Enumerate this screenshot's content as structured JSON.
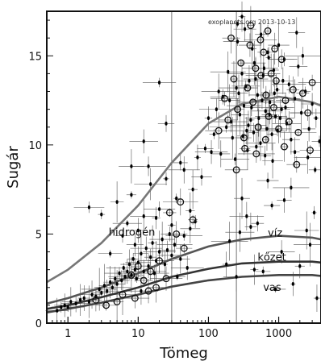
{
  "chart_data": {
    "type": "scatter",
    "title": "",
    "xlabel": "Tömeg",
    "ylabel": "Sugár",
    "xscale": "log",
    "xlim": [
      0.5,
      4000
    ],
    "ylim": [
      0,
      17.5
    ],
    "x_ticks": [
      {
        "value": 1,
        "label": "1"
      },
      {
        "value": 10,
        "label": "10"
      },
      {
        "value": 100,
        "label": "100"
      },
      {
        "value": 1000,
        "label": "1000"
      }
    ],
    "y_ticks": [
      {
        "value": 0,
        "label": "0"
      },
      {
        "value": 5,
        "label": "5"
      },
      {
        "value": 10,
        "label": "10"
      },
      {
        "value": 15,
        "label": "15"
      }
    ],
    "grid": false,
    "watermark": "exoplanets.org 2013-10-13",
    "curves": [
      {
        "name": "hidrogén",
        "color": "#777777",
        "points": [
          [
            0.5,
            2.3
          ],
          [
            1,
            3.0
          ],
          [
            3,
            4.5
          ],
          [
            10,
            6.6
          ],
          [
            30,
            9.0
          ],
          [
            100,
            11.2
          ],
          [
            300,
            12.3
          ],
          [
            1000,
            12.7
          ],
          [
            3000,
            12.4
          ],
          [
            4000,
            12.2
          ]
        ]
      },
      {
        "name": "víz",
        "color": "#555555",
        "points": [
          [
            0.5,
            1.1
          ],
          [
            1,
            1.4
          ],
          [
            3,
            2.0
          ],
          [
            10,
            2.8
          ],
          [
            30,
            3.6
          ],
          [
            100,
            4.3
          ],
          [
            300,
            4.7
          ],
          [
            1000,
            4.9
          ],
          [
            3000,
            4.8
          ],
          [
            4000,
            4.7
          ]
        ]
      },
      {
        "name": "kőzet",
        "color": "#333333",
        "points": [
          [
            0.5,
            0.8
          ],
          [
            1,
            1.0
          ],
          [
            3,
            1.45
          ],
          [
            10,
            2.0
          ],
          [
            30,
            2.6
          ],
          [
            100,
            3.05
          ],
          [
            300,
            3.35
          ],
          [
            1000,
            3.45
          ],
          [
            3000,
            3.45
          ],
          [
            4000,
            3.4
          ]
        ]
      },
      {
        "name": "vas",
        "color": "#444444",
        "points": [
          [
            0.5,
            0.6
          ],
          [
            1,
            0.8
          ],
          [
            3,
            1.15
          ],
          [
            10,
            1.6
          ],
          [
            30,
            2.05
          ],
          [
            100,
            2.4
          ],
          [
            300,
            2.6
          ],
          [
            1000,
            2.7
          ],
          [
            3000,
            2.7
          ],
          [
            4000,
            2.65
          ]
        ]
      }
    ],
    "curve_labels": [
      {
        "text": "hidrogén",
        "x": 3.8,
        "y": 4.9
      },
      {
        "text": "víz",
        "x": 700,
        "y": 4.85
      },
      {
        "text": "kőzet",
        "x": 500,
        "y": 3.5
      },
      {
        "text": "vas",
        "x": 600,
        "y": 1.8
      }
    ],
    "series": [
      {
        "name": "",
        "marker": "dot",
        "points": [
          [
            0.7,
            0.7
          ],
          [
            0.8,
            0.9
          ],
          [
            0.9,
            1.0
          ],
          [
            1.0,
            0.9
          ],
          [
            1.1,
            1.2
          ],
          [
            1.3,
            1.1
          ],
          [
            1.5,
            1.3
          ],
          [
            1.7,
            1.4
          ],
          [
            2.0,
            1.2
          ],
          [
            2.2,
            1.6
          ],
          [
            2.5,
            1.5
          ],
          [
            2.8,
            1.9
          ],
          [
            3.0,
            1.7
          ],
          [
            3.3,
            2.1
          ],
          [
            3.6,
            1.8
          ],
          [
            4.0,
            2.3
          ],
          [
            4.3,
            2.0
          ],
          [
            4.7,
            2.5
          ],
          [
            5.0,
            2.2
          ],
          [
            5.4,
            2.8
          ],
          [
            5.8,
            2.4
          ],
          [
            6.2,
            3.1
          ],
          [
            6.5,
            2.6
          ],
          [
            7.0,
            2.9
          ],
          [
            7.5,
            3.3
          ],
          [
            8.0,
            2.7
          ],
          [
            8.5,
            3.6
          ],
          [
            9.0,
            3.0
          ],
          [
            9.5,
            2.5
          ],
          [
            10,
            3.4
          ],
          [
            11,
            3.9
          ],
          [
            12,
            2.9
          ],
          [
            13,
            4.2
          ],
          [
            14,
            3.2
          ],
          [
            15,
            3.7
          ],
          [
            16,
            4.5
          ],
          [
            17,
            2.8
          ],
          [
            18,
            3.5
          ],
          [
            20,
            4.0
          ],
          [
            22,
            4.7
          ],
          [
            24,
            3.3
          ],
          [
            26,
            4.1
          ],
          [
            28,
            5.0
          ],
          [
            30,
            3.8
          ],
          [
            33,
            4.4
          ],
          [
            36,
            2.6
          ],
          [
            40,
            3.6
          ],
          [
            45,
            4.9
          ],
          [
            50,
            3.1
          ],
          [
            55,
            5.3
          ],
          [
            2.0,
            6.5
          ],
          [
            5,
            6.8
          ],
          [
            8,
            7.2
          ],
          [
            12,
            6.0
          ],
          [
            15,
            7.8
          ],
          [
            20,
            6.4
          ],
          [
            25,
            8.1
          ],
          [
            35,
            7.0
          ],
          [
            45,
            8.6
          ],
          [
            60,
            7.5
          ],
          [
            70,
            9.3
          ],
          [
            80,
            8.2
          ],
          [
            90,
            9.8
          ],
          [
            40,
            9.0
          ],
          [
            55,
            6.3
          ],
          [
            65,
            5.7
          ],
          [
            30,
            5.5
          ],
          [
            18,
            5.9
          ],
          [
            10,
            5.2
          ],
          [
            7,
            5.6
          ],
          [
            12,
            10.2
          ],
          [
            14,
            8.8
          ],
          [
            8,
            8.8
          ],
          [
            25,
            11.2
          ],
          [
            20,
            13.5
          ],
          [
            3,
            6.1
          ],
          [
            6,
            4.9
          ],
          [
            4,
            3.9
          ],
          [
            9,
            4.4
          ],
          [
            11,
            1.8
          ],
          [
            150,
            9.5
          ],
          [
            180,
            11.0
          ],
          [
            200,
            12.5
          ],
          [
            220,
            10.4
          ],
          [
            250,
            13.2
          ],
          [
            280,
            11.7
          ],
          [
            300,
            14.0
          ],
          [
            320,
            12.2
          ],
          [
            350,
            10.8
          ],
          [
            380,
            13.6
          ],
          [
            400,
            11.4
          ],
          [
            450,
            14.6
          ],
          [
            500,
            12.8
          ],
          [
            550,
            10.1
          ],
          [
            600,
            13.9
          ],
          [
            650,
            11.9
          ],
          [
            700,
            15.2
          ],
          [
            750,
            12.4
          ],
          [
            800,
            10.6
          ],
          [
            850,
            14.2
          ],
          [
            900,
            11.6
          ],
          [
            950,
            13.1
          ],
          [
            1000,
            15.6
          ],
          [
            1100,
            12.0
          ],
          [
            1200,
            14.8
          ],
          [
            1300,
            11.2
          ],
          [
            1400,
            13.4
          ],
          [
            1500,
            10.3
          ],
          [
            1700,
            12.6
          ],
          [
            1900,
            14.4
          ],
          [
            2100,
            11.8
          ],
          [
            2400,
            13.0
          ],
          [
            2700,
            10.9
          ],
          [
            3000,
            12.3
          ],
          [
            3400,
            11.5
          ],
          [
            260,
            15.8
          ],
          [
            330,
            16.5
          ],
          [
            420,
            15.4
          ],
          [
            560,
            16.2
          ],
          [
            720,
            14.9
          ],
          [
            240,
            9.2
          ],
          [
            360,
            9.7
          ],
          [
            480,
            9.9
          ],
          [
            640,
            9.4
          ],
          [
            820,
            9.1
          ],
          [
            160,
            12.7
          ],
          [
            190,
            14.1
          ],
          [
            210,
            11.3
          ],
          [
            270,
            12.9
          ],
          [
            310,
            10.5
          ],
          [
            340,
            13.3
          ],
          [
            370,
            11.1
          ],
          [
            410,
            12.1
          ],
          [
            440,
            10.7
          ],
          [
            470,
            13.7
          ],
          [
            520,
            11.5
          ],
          [
            580,
            12.5
          ],
          [
            620,
            14.3
          ],
          [
            680,
            10.9
          ],
          [
            740,
            11.7
          ],
          [
            870,
            12.9
          ],
          [
            960,
            10.8
          ],
          [
            1050,
            11.5
          ],
          [
            1150,
            13.6
          ],
          [
            1250,
            12.1
          ],
          [
            120,
            10.6
          ],
          [
            130,
            12.0
          ],
          [
            140,
            13.0
          ],
          [
            110,
            9.6
          ],
          [
            100,
            11.5
          ],
          [
            300,
            7.0
          ],
          [
            500,
            5.6
          ],
          [
            800,
            6.6
          ],
          [
            1500,
            7.6
          ],
          [
            2500,
            5.2
          ],
          [
            3500,
            1.4
          ],
          [
            2000,
            3.2
          ],
          [
            1200,
            6.9
          ],
          [
            700,
            8.0
          ],
          [
            400,
            5.4
          ],
          [
            250,
            2.6
          ],
          [
            180,
            3.3
          ],
          [
            900,
            1.9
          ],
          [
            1600,
            2.2
          ],
          [
            450,
            3.0
          ],
          [
            600,
            2.9
          ],
          [
            1100,
            4.0
          ],
          [
            2800,
            4.4
          ],
          [
            3200,
            6.2
          ],
          [
            200,
            4.6
          ],
          [
            280,
            5.1
          ],
          [
            350,
            6.0
          ],
          [
            260,
            16.8
          ],
          [
            300,
            17.2
          ],
          [
            1800,
            16.3
          ],
          [
            2200,
            15.0
          ],
          [
            1700,
            9.6
          ],
          [
            2600,
            9.3
          ],
          [
            3300,
            8.6
          ],
          [
            3800,
            10.2
          ]
        ]
      },
      {
        "name": "",
        "marker": "open-circle",
        "points": [
          [
            28,
            6.2
          ],
          [
            35,
            5.0
          ],
          [
            40,
            6.8
          ],
          [
            45,
            4.2
          ],
          [
            60,
            5.8
          ],
          [
            8,
            2.7
          ],
          [
            10,
            3.2
          ],
          [
            12,
            2.4
          ],
          [
            15,
            2.9
          ],
          [
            20,
            3.5
          ],
          [
            6,
            1.6
          ],
          [
            9,
            1.4
          ],
          [
            14,
            1.8
          ],
          [
            5,
            1.2
          ],
          [
            18,
            2.0
          ],
          [
            25,
            2.5
          ],
          [
            3.5,
            1.0
          ],
          [
            2.5,
            1.3
          ],
          [
            140,
            10.8
          ],
          [
            170,
            12.6
          ],
          [
            190,
            11.4
          ],
          [
            230,
            13.7
          ],
          [
            260,
            12.0
          ],
          [
            290,
            14.6
          ],
          [
            320,
            10.4
          ],
          [
            360,
            13.2
          ],
          [
            390,
            15.6
          ],
          [
            430,
            12.4
          ],
          [
            470,
            14.3
          ],
          [
            510,
            11.0
          ],
          [
            560,
            13.9
          ],
          [
            610,
            15.2
          ],
          [
            660,
            12.8
          ],
          [
            720,
            11.6
          ],
          [
            780,
            14.0
          ],
          [
            850,
            12.1
          ],
          [
            920,
            13.6
          ],
          [
            1000,
            10.9
          ],
          [
            1100,
            14.8
          ],
          [
            1250,
            12.5
          ],
          [
            1400,
            11.3
          ],
          [
            1600,
            13.1
          ],
          [
            1900,
            10.7
          ],
          [
            2200,
            12.9
          ],
          [
            2600,
            11.8
          ],
          [
            3000,
            13.5
          ],
          [
            210,
            16.0
          ],
          [
            400,
            16.7
          ],
          [
            700,
            16.4
          ],
          [
            550,
            15.9
          ],
          [
            880,
            15.4
          ],
          [
            330,
            9.8
          ],
          [
            480,
            9.5
          ],
          [
            650,
            10.3
          ],
          [
            250,
            8.6
          ],
          [
            1200,
            9.9
          ],
          [
            1800,
            8.9
          ],
          [
            2800,
            9.7
          ]
        ]
      }
    ],
    "vertical_lines_x": [
      30,
      250
    ]
  }
}
